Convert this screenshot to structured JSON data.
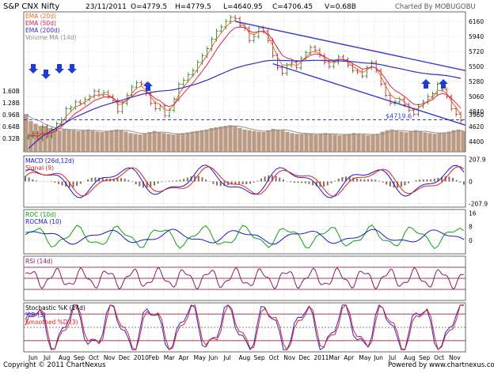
{
  "header": {
    "title": "S&P CNX Nifty",
    "date": "23/11/2011",
    "open": "O=4779.5",
    "high": "H=4779.5",
    "low": "L=4640.95",
    "close": "C=4706.45",
    "volume": "V=0.68B",
    "credit": "Charted By MOBUGOBU"
  },
  "footer": {
    "copyright": "Copyright © 2011 ChartNexus",
    "powered": "Powered by www.chartnexus.com"
  },
  "colors": {
    "price_up": "#1a7a1a",
    "price_down": "#b02020",
    "ema20": "#e07020",
    "ema50": "#e0205a",
    "ema200": "#3030c0",
    "volume": "#b08a70",
    "volume_ma": "#909090",
    "trend_line": "#3a3ad0",
    "arrow": "#1e3cd2",
    "macd_line": "#1a1acc",
    "signal_line": "#e02020",
    "histogram": "#8a6a5a",
    "roc": "#11a011",
    "rocma": "#1a1acc",
    "rsi": "#8a1a6a",
    "stoch_k": "#2a2acc",
    "stoch_d": "#e02020",
    "ref_line": "#800020"
  },
  "chart_data": [
    {
      "type": "candlestick",
      "panel": "price",
      "legend": [
        "EMA (20d)",
        "EMA (50d)",
        "EMA (200d)",
        "Volume MA (14d)"
      ],
      "y_ticks": [
        6160,
        5940,
        5720,
        5500,
        5280,
        5060,
        4840,
        4620,
        4400
      ],
      "ylim": [
        4250,
        6300
      ],
      "volume_ticks": [
        "1.60B",
        "1.28B",
        "0.96B",
        "0.64B",
        "0.32B"
      ],
      "volume_ylim_bn": [
        0,
        1.8
      ],
      "extra_y_tick": 3960,
      "support_level": 4719.6,
      "support_label": "$4719.6",
      "x_ticks": [
        "Jun",
        "Jul",
        "Aug",
        "Sep",
        "Oct",
        "Nov",
        "Dec",
        "2010",
        "Feb",
        "Mar",
        "Apr",
        "May",
        "Jun",
        "Jul",
        "Aug",
        "Sep",
        "Oct",
        "Nov",
        "Dec",
        "2011",
        "Mar",
        "Apr",
        "May",
        "Jun",
        "Jul",
        "Aug",
        "Sep",
        "Oct",
        "Nov"
      ],
      "closes": [
        4480,
        4520,
        4440,
        4620,
        4480,
        4580,
        4660,
        4720,
        4880,
        4900,
        4980,
        4960,
        5020,
        5060,
        5140,
        5080,
        5120,
        5060,
        5000,
        4840,
        4960,
        5080,
        5200,
        5260,
        5240,
        5100,
        4960,
        4880,
        4920,
        4780,
        4860,
        5020,
        5240,
        5300,
        5380,
        5440,
        5560,
        5660,
        5760,
        5900,
        6020,
        6080,
        6160,
        6220,
        6200,
        6100,
        6060,
        5880,
        5940,
        6060,
        6020,
        5880,
        5660,
        5480,
        5400,
        5520,
        5560,
        5480,
        5620,
        5700,
        5780,
        5740,
        5660,
        5560,
        5500,
        5560,
        5640,
        5600,
        5520,
        5440,
        5420,
        5360,
        5480,
        5560,
        5440,
        5240,
        5080,
        4960,
        4980,
        5020,
        4940,
        4860,
        4800,
        4920,
        4980,
        5060,
        5100,
        5240,
        5160,
        5060,
        4880,
        4800,
        4706
      ],
      "ema200": [
        4300,
        4360,
        4420,
        4480,
        4520,
        4560,
        4600,
        4640,
        4680,
        4720,
        4760,
        4790,
        4820,
        4850,
        4880,
        4905,
        4930,
        4950,
        4970,
        4990,
        5010,
        5030,
        5050,
        5070,
        5090,
        5105,
        5120,
        5130,
        5140,
        5145,
        5150,
        5160,
        5175,
        5190,
        5210,
        5230,
        5250,
        5275,
        5300,
        5330,
        5360,
        5390,
        5420,
        5450,
        5475,
        5495,
        5515,
        5530,
        5545,
        5560,
        5575,
        5585,
        5590,
        5590,
        5588,
        5586,
        5584,
        5582,
        5582,
        5584,
        5588,
        5590,
        5590,
        5588,
        5584,
        5582,
        5582,
        5580,
        5576,
        5570,
        5562,
        5554,
        5550,
        5546,
        5538,
        5526,
        5512,
        5496,
        5482,
        5470,
        5456,
        5440,
        5424,
        5412,
        5400,
        5392,
        5384,
        5380,
        5374,
        5366,
        5354,
        5340,
        5326
      ],
      "volumes_bn": [
        1.05,
        0.85,
        0.78,
        0.72,
        0.7,
        0.66,
        0.62,
        0.6,
        0.64,
        0.62,
        0.6,
        0.58,
        0.6,
        0.62,
        0.58,
        0.56,
        0.55,
        0.58,
        0.6,
        0.62,
        0.6,
        0.56,
        0.52,
        0.5,
        0.48,
        0.52,
        0.55,
        0.58,
        0.54,
        0.52,
        0.5,
        0.48,
        0.5,
        0.52,
        0.54,
        0.56,
        0.58,
        0.6,
        0.62,
        0.66,
        0.68,
        0.7,
        0.72,
        0.74,
        0.7,
        0.66,
        0.62,
        0.6,
        0.58,
        0.56,
        0.55,
        0.6,
        0.64,
        0.62,
        0.6,
        0.55,
        0.52,
        0.5,
        0.5,
        0.52,
        0.5,
        0.48,
        0.5,
        0.52,
        0.5,
        0.48,
        0.46,
        0.48,
        0.5,
        0.52,
        0.5,
        0.48,
        0.46,
        0.48,
        0.5,
        0.56,
        0.6,
        0.62,
        0.58,
        0.56,
        0.54,
        0.58,
        0.6,
        0.56,
        0.54,
        0.52,
        0.5,
        0.52,
        0.54,
        0.56,
        0.6,
        0.62,
        0.58
      ]
    },
    {
      "type": "line",
      "panel": "macd",
      "legend": [
        "MACD (26d,12d)",
        "Signal (9)"
      ],
      "y_ticks": [
        207.9,
        0,
        -207.9
      ],
      "ylim": [
        -240,
        240
      ]
    },
    {
      "type": "line",
      "panel": "roc",
      "legend": [
        "ROC (10d)",
        "ROCMA (10)"
      ],
      "y_ticks": [
        16,
        8,
        0
      ],
      "ylim": [
        -8,
        18
      ]
    },
    {
      "type": "line",
      "panel": "rsi",
      "legend": [
        "RSI (14d)"
      ],
      "ylim": [
        10,
        90
      ],
      "ref_levels": [
        70,
        50,
        30
      ]
    },
    {
      "type": "line",
      "panel": "stochastic",
      "legend": [
        "Stochastic %K (14d)",
        "%D (3)",
        "Smoothed %D (3)"
      ],
      "ylim": [
        -5,
        105
      ],
      "ref_levels": [
        80,
        50,
        20
      ]
    }
  ]
}
